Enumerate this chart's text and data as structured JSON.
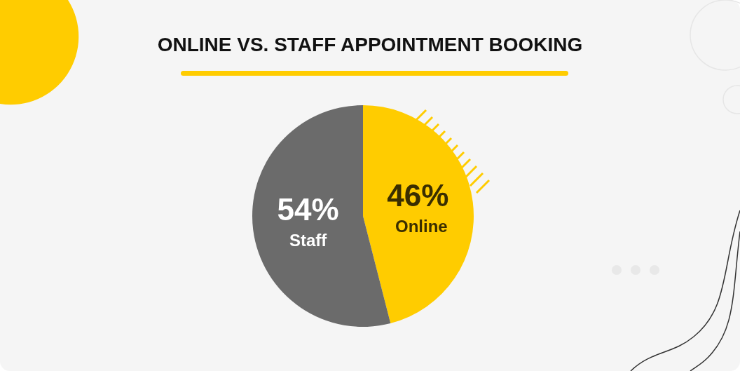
{
  "chart_data": {
    "type": "pie",
    "title": "ONLINE VS. STAFF APPOINTMENT BOOKING",
    "categories": [
      "Online",
      "Staff"
    ],
    "values": [
      46,
      54
    ],
    "colors": [
      "#ffcc00",
      "#6b6b6b"
    ],
    "value_labels": [
      "46%",
      "54%"
    ],
    "legend": false
  }
}
